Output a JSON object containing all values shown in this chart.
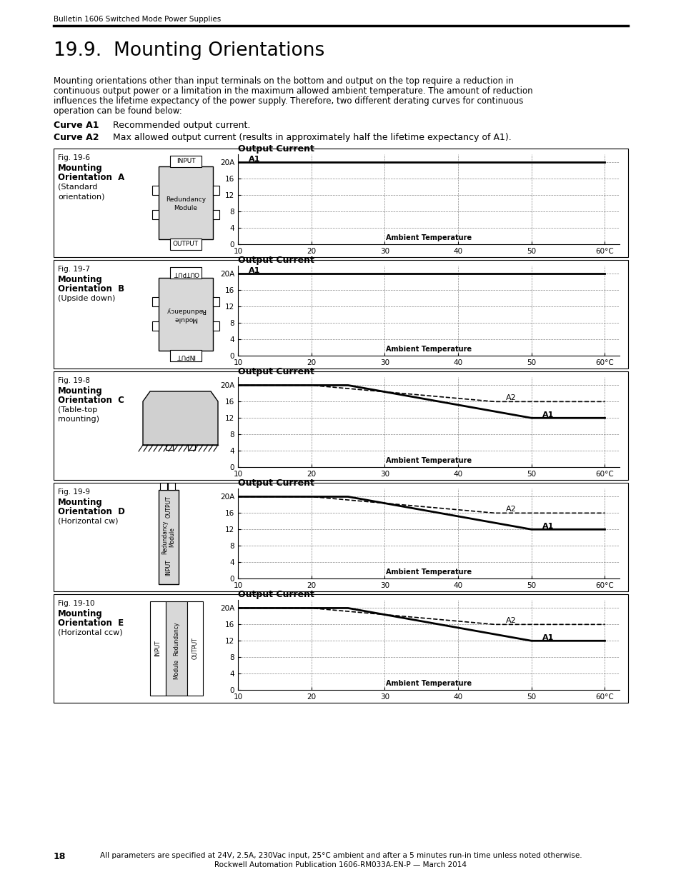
{
  "page_header": "Bulletin 1606 Switched Mode Power Supplies",
  "section_title": "19.9.  Mounting Orientations",
  "intro_text": "Mounting orientations other than input terminals on the bottom and output on the top require a reduction in\ncontinuous output power or a limitation in the maximum allowed ambient temperature. The amount of reduction\ninfluences the lifetime expectancy of the power supply. Therefore, two different derating curves for continuous\noperation can be found below:",
  "curve_a1_label": "Curve A1",
  "curve_a1_desc": "Recommended output current.",
  "curve_a2_label": "Curve A2",
  "curve_a2_desc": "Max allowed output current (results in approximately half the lifetime expectancy of A1).",
  "figures": [
    {
      "fig_label": "Fig. 19-6",
      "orient_label": "Mounting\nOrientation  A",
      "orient_sub": "(Standard\norientation)",
      "has_a2": false,
      "diagram_type": "A",
      "graph": {
        "title": "Output Current",
        "curve_a1": [
          [
            10,
            20
          ],
          [
            60,
            20
          ]
        ],
        "curve_a2": null
      }
    },
    {
      "fig_label": "Fig. 19-7",
      "orient_label": "Mounting\nOrientation  B",
      "orient_sub": "(Upside down)",
      "has_a2": false,
      "diagram_type": "B",
      "graph": {
        "title": "Output Current",
        "curve_a1": [
          [
            10,
            20
          ],
          [
            60,
            20
          ]
        ],
        "curve_a2": null
      }
    },
    {
      "fig_label": "Fig. 19-8",
      "orient_label": "Mounting\nOrientation  C",
      "orient_sub": "(Table-top\nmounting)",
      "has_a2": true,
      "diagram_type": "C",
      "graph": {
        "title": "Output Current",
        "curve_a1": [
          [
            10,
            20
          ],
          [
            25,
            20
          ],
          [
            50,
            12
          ],
          [
            60,
            12
          ]
        ],
        "curve_a2": [
          [
            10,
            20
          ],
          [
            20,
            20
          ],
          [
            45,
            16
          ],
          [
            60,
            16
          ]
        ]
      }
    },
    {
      "fig_label": "Fig. 19-9",
      "orient_label": "Mounting\nOrientation  D",
      "orient_sub": "(Horizontal cw)",
      "has_a2": true,
      "diagram_type": "D",
      "graph": {
        "title": "Output Current",
        "curve_a1": [
          [
            10,
            20
          ],
          [
            25,
            20
          ],
          [
            50,
            12
          ],
          [
            60,
            12
          ]
        ],
        "curve_a2": [
          [
            10,
            20
          ],
          [
            20,
            20
          ],
          [
            45,
            16
          ],
          [
            60,
            16
          ]
        ]
      }
    },
    {
      "fig_label": "Fig. 19-10",
      "orient_label": "Mounting\nOrientation  E",
      "orient_sub": "(Horizontal ccw)",
      "has_a2": true,
      "diagram_type": "E",
      "graph": {
        "title": "Output Current",
        "curve_a1": [
          [
            10,
            20
          ],
          [
            25,
            20
          ],
          [
            50,
            12
          ],
          [
            60,
            12
          ]
        ],
        "curve_a2": [
          [
            10,
            20
          ],
          [
            20,
            20
          ],
          [
            45,
            16
          ],
          [
            60,
            16
          ]
        ]
      }
    }
  ],
  "footer_text": "All parameters are specified at 24V, 2.5A, 230Vac input, 25°C ambient and after a 5 minutes run-in time unless noted otherwise.\nRockwell Automation Publication 1606-RM033A-EN-P — March 2014",
  "page_number": "18"
}
